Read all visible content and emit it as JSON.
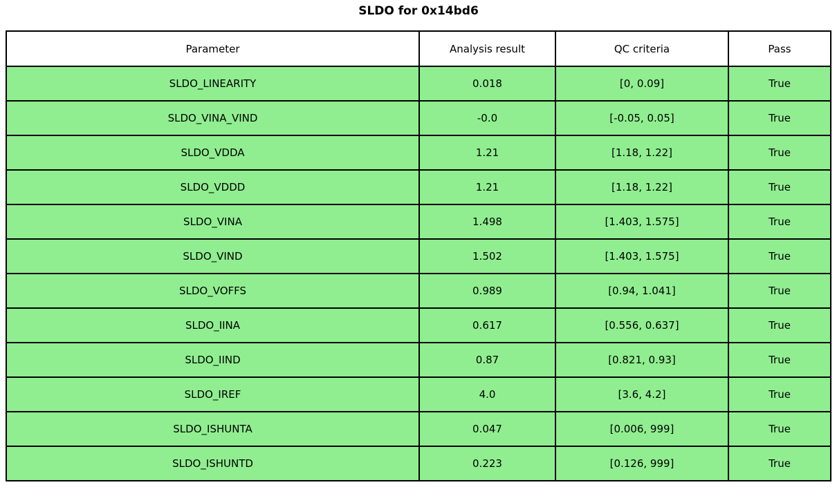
{
  "title": "SLDO for 0x14bd6",
  "colors": {
    "row_pass": "#90ee90",
    "header_bg": "#ffffff",
    "border": "#000000"
  },
  "table": {
    "columns": [
      "Parameter",
      "Analysis result",
      "QC criteria",
      "Pass"
    ],
    "rows": [
      {
        "parameter": "SLDO_LINEARITY",
        "analysis_result": "0.018",
        "qc_criteria": "[0, 0.09]",
        "pass": "True"
      },
      {
        "parameter": "SLDO_VINA_VIND",
        "analysis_result": "-0.0",
        "qc_criteria": "[-0.05, 0.05]",
        "pass": "True"
      },
      {
        "parameter": "SLDO_VDDA",
        "analysis_result": "1.21",
        "qc_criteria": "[1.18, 1.22]",
        "pass": "True"
      },
      {
        "parameter": "SLDO_VDDD",
        "analysis_result": "1.21",
        "qc_criteria": "[1.18, 1.22]",
        "pass": "True"
      },
      {
        "parameter": "SLDO_VINA",
        "analysis_result": "1.498",
        "qc_criteria": "[1.403, 1.575]",
        "pass": "True"
      },
      {
        "parameter": "SLDO_VIND",
        "analysis_result": "1.502",
        "qc_criteria": "[1.403, 1.575]",
        "pass": "True"
      },
      {
        "parameter": "SLDO_VOFFS",
        "analysis_result": "0.989",
        "qc_criteria": "[0.94, 1.041]",
        "pass": "True"
      },
      {
        "parameter": "SLDO_IINA",
        "analysis_result": "0.617",
        "qc_criteria": "[0.556, 0.637]",
        "pass": "True"
      },
      {
        "parameter": "SLDO_IIND",
        "analysis_result": "0.87",
        "qc_criteria": "[0.821, 0.93]",
        "pass": "True"
      },
      {
        "parameter": "SLDO_IREF",
        "analysis_result": "4.0",
        "qc_criteria": "[3.6, 4.2]",
        "pass": "True"
      },
      {
        "parameter": "SLDO_ISHUNTA",
        "analysis_result": "0.047",
        "qc_criteria": "[0.006, 999]",
        "pass": "True"
      },
      {
        "parameter": "SLDO_ISHUNTD",
        "analysis_result": "0.223",
        "qc_criteria": "[0.126, 999]",
        "pass": "True"
      }
    ]
  },
  "chart_data": {
    "type": "table",
    "title": "SLDO for 0x14bd6",
    "columns": [
      "Parameter",
      "Analysis result",
      "QC criteria",
      "Pass"
    ],
    "rows": [
      [
        "SLDO_LINEARITY",
        0.018,
        "[0, 0.09]",
        true
      ],
      [
        "SLDO_VINA_VIND",
        -0.0,
        "[-0.05, 0.05]",
        true
      ],
      [
        "SLDO_VDDA",
        1.21,
        "[1.18, 1.22]",
        true
      ],
      [
        "SLDO_VDDD",
        1.21,
        "[1.18, 1.22]",
        true
      ],
      [
        "SLDO_VINA",
        1.498,
        "[1.403, 1.575]",
        true
      ],
      [
        "SLDO_VIND",
        1.502,
        "[1.403, 1.575]",
        true
      ],
      [
        "SLDO_VOFFS",
        0.989,
        "[0.94, 1.041]",
        true
      ],
      [
        "SLDO_IINA",
        0.617,
        "[0.556, 0.637]",
        true
      ],
      [
        "SLDO_IIND",
        0.87,
        "[0.821, 0.93]",
        true
      ],
      [
        "SLDO_IREF",
        4.0,
        "[3.6, 4.2]",
        true
      ],
      [
        "SLDO_ISHUNTA",
        0.047,
        "[0.006, 999]",
        true
      ],
      [
        "SLDO_ISHUNTD",
        0.223,
        "[0.126, 999]",
        true
      ]
    ],
    "layout": {
      "header_background": "#ffffff",
      "pass_row_background": "#90ee90",
      "grid": true,
      "all_rows_pass": true
    }
  }
}
